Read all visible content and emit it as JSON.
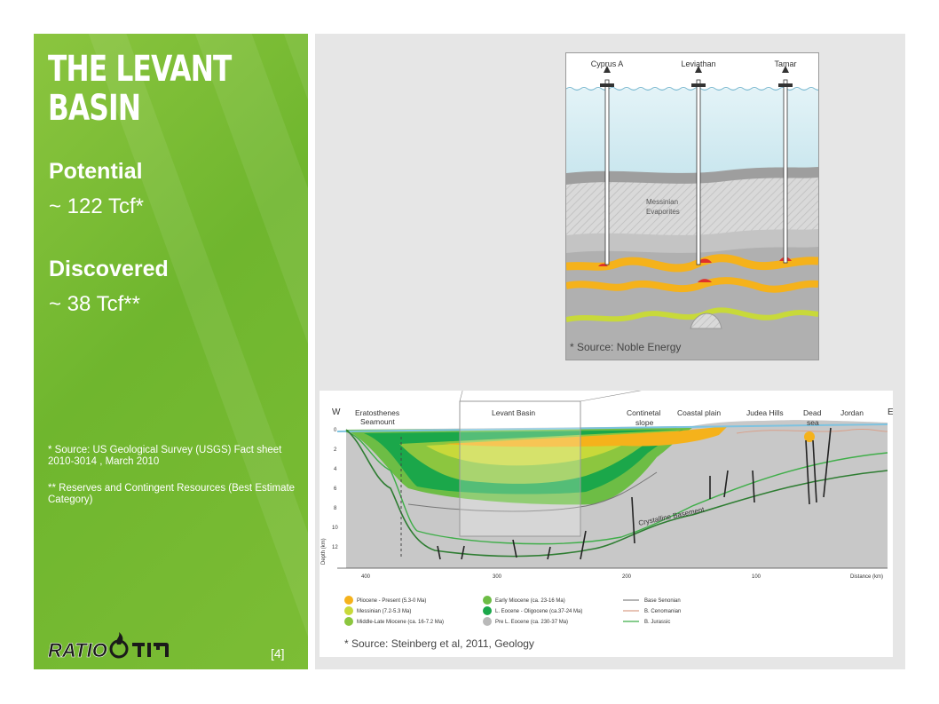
{
  "slide": {
    "title": "THE LEVANT BASIN",
    "potential_label": "Potential",
    "potential_value": "~ 122 Tcf*",
    "discovered_label": "Discovered",
    "discovered_value": "~ 38 Tcf**",
    "note1": "* Source: US Geological Survey (USGS) Fact sheet 2010-3014 , March 2010",
    "note2": "** Reserves and Contingent Resources (Best Estimate Category)",
    "ref": "[4]",
    "logo_text": "RATIO"
  },
  "inset": {
    "wells": [
      "Cyprus A",
      "Leviathan",
      "Tamar"
    ],
    "evaporites_label_1": "Messinian",
    "evaporites_label_2": "Evaporites",
    "source": "* Source: Noble Energy"
  },
  "section": {
    "west": "W",
    "east": "E",
    "labels": {
      "eratosthenes_1": "Eratosthenes",
      "eratosthenes_2": "Seamount",
      "levant": "Levant Basin",
      "continental_1": "Continetal",
      "continental_2": "slope",
      "coastal": "Coastal plain",
      "judea": "Judea Hills",
      "dead_1": "Dead",
      "dead_2": "sea",
      "jordan": "Jordan",
      "basement": "Crystalline Basement",
      "depth_axis": "Depth (km)",
      "distance_axis": "Distance (km)"
    },
    "depth_ticks": [
      "0",
      "2",
      "4",
      "6",
      "8",
      "10",
      "12"
    ],
    "distance_ticks": [
      "400",
      "300",
      "200",
      "100"
    ],
    "source": "* Source: Steinberg et al, 2011, Geology"
  },
  "legend": [
    {
      "label": "Pliocene - Present (5.3-0 Ma)",
      "color": "#f5b21b"
    },
    {
      "label": "Messinian (7.2-5.3 Ma)",
      "color": "#c8d93a"
    },
    {
      "label": "Middle-Late Miocene (ca. 16-7.2 Ma)",
      "color": "#8cc63f"
    },
    {
      "label": "Early Miocene (ca. 23-16 Ma)",
      "color": "#6dbd45"
    },
    {
      "label": "L. Eocene - Oligocene (ca.37-24 Ma)",
      "color": "#1ba74a"
    },
    {
      "label": "Pre L. Eocene (ca. 230-37 Ma)",
      "color": "#b9b9b9"
    },
    {
      "label": "Base Senonian",
      "color": "#888888"
    },
    {
      "label": "B. Cenomanian",
      "color": "#d9a08a"
    },
    {
      "label": "B. Jurassic",
      "color": "#3fae49"
    }
  ]
}
